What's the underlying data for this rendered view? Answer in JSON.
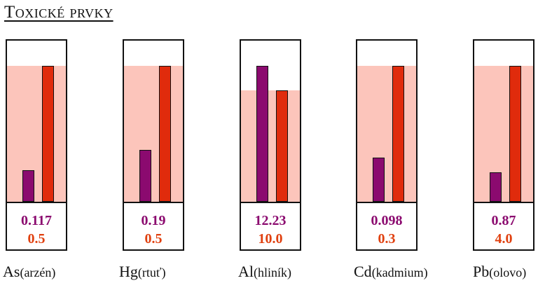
{
  "title": "Toxické prvky",
  "colors": {
    "measured": "#8b0a6f",
    "limit": "#e02b0c",
    "limit_zone": "#fcc5bb"
  },
  "chart_data": {
    "type": "bar",
    "title": "Toxické prvky",
    "xlabel": "",
    "ylabel": "",
    "categories": [
      "As(arzén)",
      "Hg(rtuť)",
      "Al(hliník)",
      "Cd(kadmium)",
      "Pb(olovo)"
    ],
    "panels": [
      {
        "symbol": "As",
        "name": "(arzén)",
        "measured": 0.117,
        "limit": 0.5,
        "measured_label": "0.117",
        "limit_label": "0.5"
      },
      {
        "symbol": "Hg",
        "name": "(rtuť)",
        "measured": 0.19,
        "limit": 0.5,
        "measured_label": "0.19",
        "limit_label": "0.5"
      },
      {
        "symbol": "Al",
        "name": "(hliník)",
        "measured": 12.23,
        "limit": 10.0,
        "measured_label": "12.23",
        "limit_label": "10.0"
      },
      {
        "symbol": "Cd",
        "name": "(kadmium)",
        "measured": 0.098,
        "limit": 0.3,
        "measured_label": "0.098",
        "limit_label": "0.3"
      },
      {
        "symbol": "Pb",
        "name": "(olovo)",
        "measured": 0.87,
        "limit": 4.0,
        "measured_label": "0.87",
        "limit_label": "4.0"
      }
    ]
  }
}
